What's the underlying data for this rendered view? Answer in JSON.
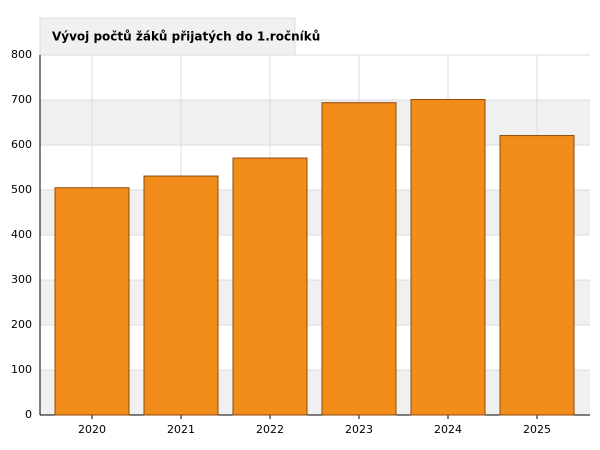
{
  "chart_data": {
    "type": "bar",
    "title": "Vývoj počtů žáků přijatých do 1.ročníků",
    "categories": [
      "2020",
      "2021",
      "2022",
      "2023",
      "2024",
      "2025"
    ],
    "values": [
      505,
      531,
      571,
      694,
      701,
      621
    ],
    "color": "#f28c1a",
    "ylim": [
      0,
      800
    ],
    "yticks": [
      0,
      100,
      200,
      300,
      400,
      500,
      600,
      700,
      800
    ],
    "grid": true
  }
}
